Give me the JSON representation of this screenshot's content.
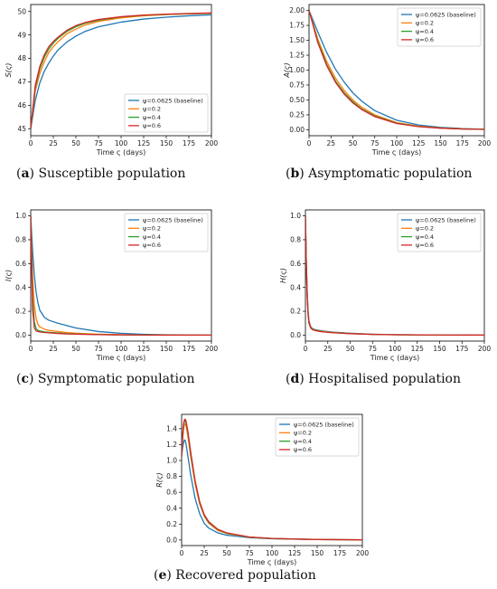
{
  "legend_labels": [
    "ψ=0.0625 (baseline)",
    "ψ=0.2",
    "ψ=0.4",
    "ψ=0.6"
  ],
  "colors": [
    "#1f77b4",
    "#ff7f0e",
    "#2ca02c",
    "#d62728"
  ],
  "chart_data": [
    {
      "type": "line",
      "panel_letter": "(a)",
      "caption": "Susceptible population",
      "xlabel": "Time ς (days)",
      "ylabel": "S(ς)",
      "xlim": [
        0,
        200
      ],
      "ylim": [
        44.7,
        50.3
      ],
      "xticks": [
        0,
        25,
        50,
        75,
        100,
        125,
        150,
        175,
        200
      ],
      "yticks": [
        45,
        46,
        47,
        48,
        49,
        50
      ],
      "ytick_labels": [
        "45",
        "46",
        "47",
        "48",
        "49",
        "50"
      ],
      "legend_position": "lower-right",
      "series": [
        {
          "name": "ψ=0.0625 (baseline)",
          "x": [
            0,
            5,
            10,
            15,
            20,
            25,
            30,
            40,
            50,
            60,
            75,
            100,
            125,
            150,
            175,
            200
          ],
          "y": [
            45.0,
            46.2,
            46.95,
            47.45,
            47.8,
            48.1,
            48.35,
            48.7,
            48.95,
            49.15,
            49.35,
            49.55,
            49.68,
            49.76,
            49.82,
            49.86
          ]
        },
        {
          "name": "ψ=0.2",
          "x": [
            0,
            5,
            10,
            15,
            20,
            25,
            30,
            40,
            50,
            60,
            75,
            100,
            125,
            150,
            175,
            200
          ],
          "y": [
            45.0,
            46.6,
            47.35,
            47.85,
            48.25,
            48.5,
            48.7,
            49.05,
            49.25,
            49.42,
            49.58,
            49.73,
            49.82,
            49.87,
            49.9,
            49.92
          ]
        },
        {
          "name": "ψ=0.4",
          "x": [
            0,
            5,
            10,
            15,
            20,
            25,
            30,
            40,
            50,
            60,
            75,
            100,
            125,
            150,
            175,
            200
          ],
          "y": [
            45.0,
            46.75,
            47.55,
            48.05,
            48.4,
            48.65,
            48.85,
            49.15,
            49.35,
            49.5,
            49.63,
            49.77,
            49.84,
            49.88,
            49.91,
            49.93
          ]
        },
        {
          "name": "ψ=0.6",
          "x": [
            0,
            5,
            10,
            15,
            20,
            25,
            30,
            40,
            50,
            60,
            75,
            100,
            125,
            150,
            175,
            200
          ],
          "y": [
            45.0,
            46.85,
            47.65,
            48.15,
            48.5,
            48.72,
            48.9,
            49.2,
            49.4,
            49.53,
            49.66,
            49.78,
            49.85,
            49.89,
            49.92,
            49.94
          ]
        }
      ]
    },
    {
      "type": "line",
      "panel_letter": "(b)",
      "caption": "Asymptomatic population",
      "xlabel": "Time ς (days)",
      "ylabel": "A(ς)",
      "xlim": [
        0,
        200
      ],
      "ylim": [
        -0.1,
        2.1
      ],
      "xticks": [
        0,
        25,
        50,
        75,
        100,
        125,
        150,
        175,
        200
      ],
      "yticks": [
        0,
        0.25,
        0.5,
        0.75,
        1.0,
        1.25,
        1.5,
        1.75,
        2.0
      ],
      "ytick_labels": [
        "0.00",
        "0.25",
        "0.50",
        "0.75",
        "1.00",
        "1.25",
        "1.50",
        "1.75",
        "2.00"
      ],
      "legend_position": "top-right",
      "series": [
        {
          "name": "ψ=0.0625 (baseline)",
          "x": [
            0,
            10,
            20,
            30,
            40,
            50,
            60,
            75,
            100,
            125,
            150,
            175,
            200
          ],
          "y": [
            2.0,
            1.64,
            1.3,
            1.02,
            0.8,
            0.62,
            0.48,
            0.32,
            0.16,
            0.08,
            0.04,
            0.02,
            0.01
          ]
        },
        {
          "name": "ψ=0.2",
          "x": [
            0,
            10,
            20,
            30,
            40,
            50,
            60,
            75,
            100,
            125,
            150,
            175,
            200
          ],
          "y": [
            2.0,
            1.52,
            1.15,
            0.87,
            0.66,
            0.5,
            0.38,
            0.25,
            0.12,
            0.06,
            0.03,
            0.015,
            0.008
          ]
        },
        {
          "name": "ψ=0.4",
          "x": [
            0,
            10,
            20,
            30,
            40,
            50,
            60,
            75,
            100,
            125,
            150,
            175,
            200
          ],
          "y": [
            2.0,
            1.48,
            1.1,
            0.82,
            0.62,
            0.47,
            0.35,
            0.23,
            0.11,
            0.055,
            0.027,
            0.013,
            0.007
          ]
        },
        {
          "name": "ψ=0.6",
          "x": [
            0,
            10,
            20,
            30,
            40,
            50,
            60,
            75,
            100,
            125,
            150,
            175,
            200
          ],
          "y": [
            2.0,
            1.46,
            1.08,
            0.8,
            0.6,
            0.45,
            0.34,
            0.22,
            0.105,
            0.052,
            0.026,
            0.012,
            0.006
          ]
        }
      ]
    },
    {
      "type": "line",
      "panel_letter": "(c)",
      "caption": "Symptomatic population",
      "xlabel": "Time ς (days)",
      "ylabel": "I(ς)",
      "xlim": [
        0,
        200
      ],
      "ylim": [
        -0.05,
        1.05
      ],
      "xticks": [
        0,
        25,
        50,
        75,
        100,
        125,
        150,
        175,
        200
      ],
      "yticks": [
        0,
        0.2,
        0.4,
        0.6,
        0.8,
        1.0
      ],
      "ytick_labels": [
        "0.0",
        "0.2",
        "0.4",
        "0.6",
        "0.8",
        "1.0"
      ],
      "legend_position": "top-right",
      "series": [
        {
          "name": "ψ=0.0625 (baseline)",
          "x": [
            0,
            2,
            4,
            6,
            8,
            10,
            15,
            20,
            30,
            40,
            50,
            75,
            100,
            125,
            150,
            200
          ],
          "y": [
            1.0,
            0.72,
            0.5,
            0.36,
            0.27,
            0.21,
            0.15,
            0.125,
            0.1,
            0.08,
            0.06,
            0.03,
            0.015,
            0.007,
            0.003,
            0.001
          ]
        },
        {
          "name": "ψ=0.2",
          "x": [
            0,
            2,
            4,
            6,
            8,
            10,
            15,
            20,
            30,
            40,
            50,
            75,
            100,
            125,
            150,
            200
          ],
          "y": [
            1.0,
            0.5,
            0.25,
            0.14,
            0.09,
            0.07,
            0.05,
            0.04,
            0.03,
            0.022,
            0.016,
            0.008,
            0.004,
            0.002,
            0.001,
            0.0
          ]
        },
        {
          "name": "ψ=0.4",
          "x": [
            0,
            2,
            4,
            6,
            8,
            10,
            15,
            20,
            30,
            40,
            50,
            75,
            100,
            125,
            150,
            200
          ],
          "y": [
            1.0,
            0.33,
            0.11,
            0.055,
            0.04,
            0.035,
            0.028,
            0.024,
            0.018,
            0.013,
            0.01,
            0.005,
            0.002,
            0.001,
            0.0,
            0.0
          ]
        },
        {
          "name": "ψ=0.6",
          "x": [
            0,
            2,
            4,
            6,
            8,
            10,
            15,
            20,
            30,
            40,
            50,
            75,
            100,
            125,
            150,
            200
          ],
          "y": [
            1.0,
            0.22,
            0.06,
            0.035,
            0.03,
            0.027,
            0.022,
            0.019,
            0.014,
            0.01,
            0.008,
            0.004,
            0.002,
            0.001,
            0.0,
            0.0
          ]
        }
      ]
    },
    {
      "type": "line",
      "panel_letter": "(d)",
      "caption": "Hospitalised population",
      "xlabel": "Time ς (days)",
      "ylabel": "H(ς)",
      "xlim": [
        0,
        200
      ],
      "ylim": [
        -0.05,
        1.05
      ],
      "xticks": [
        0,
        25,
        50,
        75,
        100,
        125,
        150,
        175,
        200
      ],
      "yticks": [
        0,
        0.2,
        0.4,
        0.6,
        0.8,
        1.0
      ],
      "ytick_labels": [
        "0.0",
        "0.2",
        "0.4",
        "0.6",
        "0.8",
        "1.0"
      ],
      "legend_position": "top-right",
      "series": [
        {
          "name": "ψ=0.0625 (baseline)",
          "x": [
            0,
            1,
            2,
            3,
            4,
            6,
            8,
            10,
            15,
            20,
            30,
            50,
            75,
            100,
            150,
            200
          ],
          "y": [
            1.0,
            0.62,
            0.36,
            0.2,
            0.12,
            0.07,
            0.055,
            0.048,
            0.04,
            0.034,
            0.026,
            0.016,
            0.008,
            0.004,
            0.001,
            0.0
          ]
        },
        {
          "name": "ψ=0.2",
          "x": [
            0,
            1,
            2,
            3,
            4,
            6,
            8,
            10,
            15,
            20,
            30,
            50,
            75,
            100,
            150,
            200
          ],
          "y": [
            1.0,
            0.6,
            0.34,
            0.19,
            0.11,
            0.065,
            0.05,
            0.044,
            0.036,
            0.03,
            0.023,
            0.014,
            0.007,
            0.003,
            0.001,
            0.0
          ]
        },
        {
          "name": "ψ=0.4",
          "x": [
            0,
            1,
            2,
            3,
            4,
            6,
            8,
            10,
            15,
            20,
            30,
            50,
            75,
            100,
            150,
            200
          ],
          "y": [
            1.0,
            0.59,
            0.33,
            0.18,
            0.1,
            0.06,
            0.048,
            0.042,
            0.034,
            0.028,
            0.021,
            0.013,
            0.006,
            0.003,
            0.001,
            0.0
          ]
        },
        {
          "name": "ψ=0.6",
          "x": [
            0,
            1,
            2,
            3,
            4,
            6,
            8,
            10,
            15,
            20,
            30,
            50,
            75,
            100,
            150,
            200
          ],
          "y": [
            1.0,
            0.58,
            0.32,
            0.17,
            0.1,
            0.058,
            0.046,
            0.04,
            0.032,
            0.027,
            0.02,
            0.012,
            0.006,
            0.003,
            0.001,
            0.0
          ]
        }
      ]
    },
    {
      "type": "line",
      "panel_letter": "(e)",
      "caption": "Recovered population",
      "xlabel": "Time ς (days)",
      "ylabel": "R(ς)",
      "xlim": [
        0,
        200
      ],
      "ylim": [
        -0.07,
        1.58
      ],
      "xticks": [
        0,
        25,
        50,
        75,
        100,
        125,
        150,
        175,
        200
      ],
      "yticks": [
        0,
        0.2,
        0.4,
        0.6,
        0.8,
        1.0,
        1.2,
        1.4
      ],
      "ytick_labels": [
        "0.0",
        "0.2",
        "0.4",
        "0.6",
        "0.8",
        "1.0",
        "1.2",
        "1.4"
      ],
      "legend_position": "top-right",
      "series": [
        {
          "name": "ψ=0.0625 (baseline)",
          "x": [
            0,
            1,
            2,
            3,
            4,
            5,
            7,
            10,
            15,
            20,
            25,
            30,
            40,
            50,
            75,
            100,
            150,
            200
          ],
          "y": [
            1.05,
            1.15,
            1.22,
            1.26,
            1.25,
            1.2,
            1.05,
            0.82,
            0.52,
            0.33,
            0.21,
            0.15,
            0.09,
            0.06,
            0.03,
            0.015,
            0.005,
            0.002
          ]
        },
        {
          "name": "ψ=0.2",
          "x": [
            0,
            1,
            2,
            3,
            4,
            5,
            7,
            10,
            15,
            20,
            25,
            30,
            40,
            50,
            75,
            100,
            150,
            200
          ],
          "y": [
            1.05,
            1.25,
            1.38,
            1.45,
            1.46,
            1.43,
            1.3,
            1.05,
            0.7,
            0.45,
            0.3,
            0.21,
            0.12,
            0.08,
            0.035,
            0.018,
            0.006,
            0.002
          ]
        },
        {
          "name": "ψ=0.4",
          "x": [
            0,
            1,
            2,
            3,
            4,
            5,
            7,
            10,
            15,
            20,
            25,
            30,
            40,
            50,
            75,
            100,
            150,
            200
          ],
          "y": [
            1.05,
            1.28,
            1.42,
            1.49,
            1.5,
            1.47,
            1.34,
            1.09,
            0.73,
            0.47,
            0.31,
            0.22,
            0.13,
            0.085,
            0.037,
            0.019,
            0.006,
            0.002
          ]
        },
        {
          "name": "ψ=0.6",
          "x": [
            0,
            1,
            2,
            3,
            4,
            5,
            7,
            10,
            15,
            20,
            25,
            30,
            40,
            50,
            75,
            100,
            150,
            200
          ],
          "y": [
            1.05,
            1.3,
            1.45,
            1.51,
            1.52,
            1.49,
            1.36,
            1.11,
            0.74,
            0.48,
            0.32,
            0.23,
            0.135,
            0.09,
            0.038,
            0.02,
            0.006,
            0.002
          ]
        }
      ]
    }
  ]
}
